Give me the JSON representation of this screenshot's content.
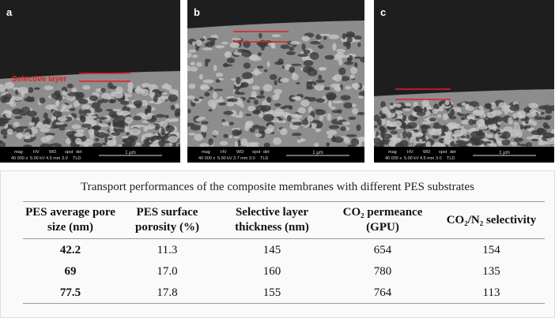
{
  "images": [
    {
      "label": "a",
      "annotation": "Selective layer",
      "info": {
        "keys": [
          "mag",
          "HV",
          "WD",
          "spot",
          "det"
        ],
        "values": [
          "40 000 x",
          "5.00 kV",
          "4.5 mm",
          "3.0",
          "TLD"
        ],
        "scale": "1 μm"
      }
    },
    {
      "label": "b",
      "info": {
        "keys": [
          "mag",
          "HV",
          "WD",
          "spot",
          "det"
        ],
        "values": [
          "40 000 x",
          "5.00 kV",
          "3.7 mm",
          "3.0",
          "TLD"
        ],
        "scale": "1 μm"
      }
    },
    {
      "label": "c",
      "info": {
        "keys": [
          "mag",
          "HV",
          "WD",
          "spot",
          "det"
        ],
        "values": [
          "40 000 x",
          "5.00 kV",
          "4.5 mm",
          "3.0",
          "TLD"
        ],
        "scale": "1 μm"
      }
    }
  ],
  "table": {
    "caption": "Transport performances of the composite membranes with different PES substrates",
    "headers": [
      "PES average pore size (nm)",
      "PES surface porosity (%)",
      "Selective layer thickness (nm)",
      "CO₂ permeance (GPU)",
      "CO₂/N₂ selectivity"
    ],
    "rows": [
      [
        "42.2",
        "11.3",
        "145",
        "654",
        "154"
      ],
      [
        "69",
        "17.0",
        "160",
        "780",
        "135"
      ],
      [
        "77.5",
        "17.8",
        "155",
        "764",
        "113"
      ]
    ]
  }
}
